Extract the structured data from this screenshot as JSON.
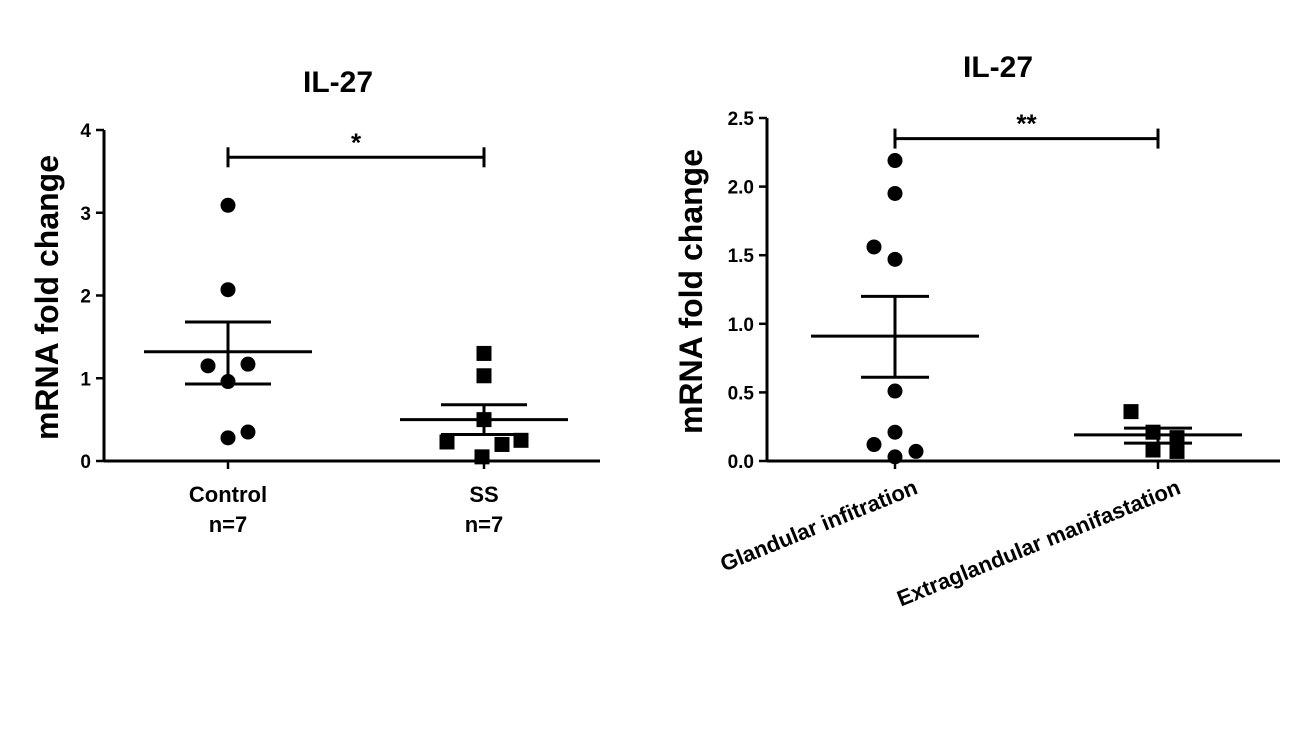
{
  "chart_data": [
    {
      "type": "scatter",
      "title": "IL-27",
      "ylabel": "mRNA fold change",
      "xlabel": "",
      "ylim": [
        0,
        4
      ],
      "yticks": [
        "0",
        "1",
        "2",
        "3",
        "4"
      ],
      "categories": [
        {
          "name": "Control",
          "n": "n=7"
        },
        {
          "name": "SS",
          "n": "n=7"
        }
      ],
      "groups": [
        {
          "category": "Control",
          "marker": "circle",
          "points": [
            3.09,
            2.07,
            1.17,
            1.15,
            0.96,
            0.35,
            0.28
          ],
          "mean": 1.32,
          "sem_upper": 1.68,
          "sem_lower": 0.93
        },
        {
          "category": "SS",
          "marker": "square",
          "points": [
            1.3,
            1.03,
            0.5,
            0.25,
            0.23,
            0.2,
            0.05
          ],
          "mean": 0.5,
          "sem_upper": 0.68,
          "sem_lower": 0.32
        }
      ],
      "significance": {
        "label": "*",
        "between": [
          "Control",
          "SS"
        ],
        "level": 3.67
      },
      "color": "#000000"
    },
    {
      "type": "scatter",
      "title": "IL-27",
      "ylabel": "mRNA fold change",
      "xlabel": "",
      "ylim": [
        0,
        2.5
      ],
      "yticks": [
        "0.0",
        "0.5",
        "1.0",
        "1.5",
        "2.0",
        "2.5"
      ],
      "categories": [
        {
          "name": "Glandular infitration",
          "n": ""
        },
        {
          "name": "Extraglandular manifastation",
          "n": ""
        }
      ],
      "groups": [
        {
          "category": "Glandular infitration",
          "marker": "circle",
          "points": [
            2.19,
            1.95,
            1.56,
            1.47,
            0.51,
            0.21,
            0.12,
            0.07,
            0.03
          ],
          "mean": 0.91,
          "sem_upper": 1.2,
          "sem_lower": 0.61
        },
        {
          "category": "Extraglandular manifastation",
          "marker": "square",
          "points": [
            0.36,
            0.21,
            0.17,
            0.08,
            0.07
          ],
          "mean": 0.19,
          "sem_upper": 0.24,
          "sem_lower": 0.13
        }
      ],
      "significance": {
        "label": "**",
        "between": [
          "Glandular infitration",
          "Extraglandular manifastation"
        ],
        "level": 2.35
      },
      "color": "#000000"
    }
  ]
}
